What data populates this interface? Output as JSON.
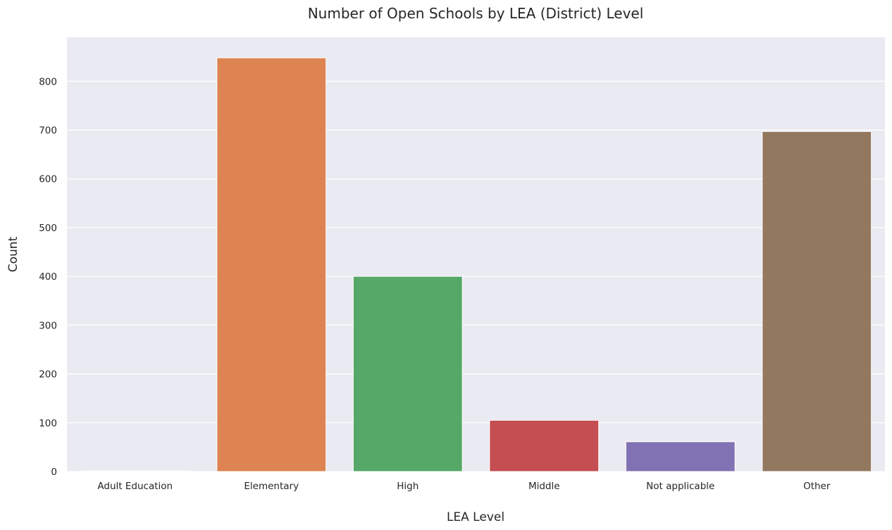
{
  "chart_data": {
    "type": "bar",
    "title": "Number of Open Schools by LEA (District) Level",
    "xlabel": "LEA Level",
    "ylabel": "Count",
    "categories": [
      "Adult Education",
      "Elementary",
      "High",
      "Middle",
      "Not applicable",
      "Other"
    ],
    "values": [
      1,
      848,
      400,
      105,
      61,
      697
    ],
    "colors": [
      "#4c72b0",
      "#dd8452",
      "#55a868",
      "#c44e52",
      "#8172b3",
      "#937860"
    ],
    "ylim": [
      0,
      890
    ],
    "yticks": [
      0,
      100,
      200,
      300,
      400,
      500,
      600,
      700,
      800
    ],
    "grid": true,
    "plot_background": "#eaeaf2",
    "legend": "none"
  }
}
